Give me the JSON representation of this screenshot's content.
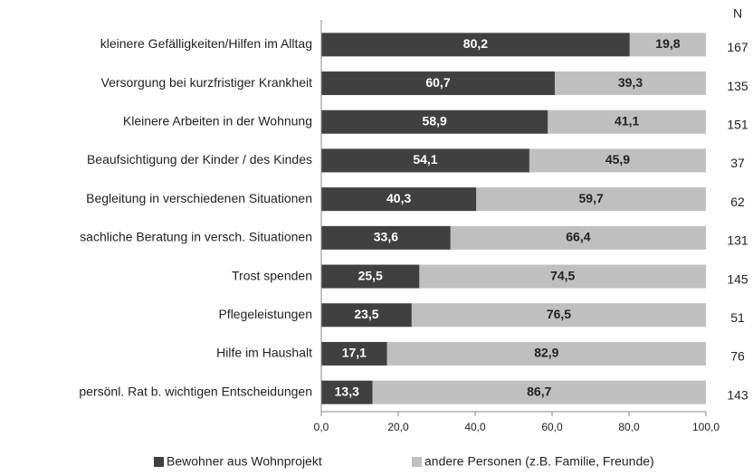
{
  "chart_data": {
    "type": "stacked-bar-horizontal",
    "categories": [
      "kleinere Gefälligkeiten/Hilfen im Alltag",
      "Versorgung bei kurzfristiger Krankheit",
      "Kleinere Arbeiten in der Wohnung",
      "Beaufsichtigung der Kinder / des Kindes",
      "Begleitung in verschiedenen Situationen",
      "sachliche Beratung in versch. Situationen",
      "Trost spenden",
      "Pflegeleistungen",
      "Hilfe im Haushalt",
      "persönl. Rat b. wichtigen Entscheidungen"
    ],
    "series": [
      {
        "name": "Bewohner aus Wohnprojekt",
        "color": "#404040",
        "values": [
          80.2,
          60.7,
          58.9,
          54.1,
          40.3,
          33.6,
          25.5,
          23.5,
          17.1,
          13.3
        ],
        "value_labels": [
          "80,2",
          "60,7",
          "58,9",
          "54,1",
          "40,3",
          "33,6",
          "25,5",
          "23,5",
          "17,1",
          "13,3"
        ]
      },
      {
        "name": "andere Personen (z.B. Familie, Freunde)",
        "color": "#bfbfbf",
        "values": [
          19.8,
          39.3,
          41.1,
          45.9,
          59.7,
          66.4,
          74.5,
          76.5,
          82.9,
          86.7
        ],
        "value_labels": [
          "19,8",
          "39,3",
          "41,1",
          "45,9",
          "59,7",
          "66,4",
          "74,5",
          "76,5",
          "82,9",
          "86,7"
        ]
      }
    ],
    "n_header": "N",
    "n_values": [
      167,
      135,
      151,
      37,
      62,
      131,
      145,
      51,
      76,
      143
    ],
    "xlim": [
      0,
      100
    ],
    "xticks": [
      {
        "value": 0,
        "label": "0,0"
      },
      {
        "value": 20,
        "label": "20,0"
      },
      {
        "value": 40,
        "label": "40,0"
      },
      {
        "value": 60,
        "label": "60,0"
      },
      {
        "value": 80,
        "label": "80,0"
      },
      {
        "value": 100,
        "label": "100,0"
      }
    ],
    "legend": "bottom"
  }
}
